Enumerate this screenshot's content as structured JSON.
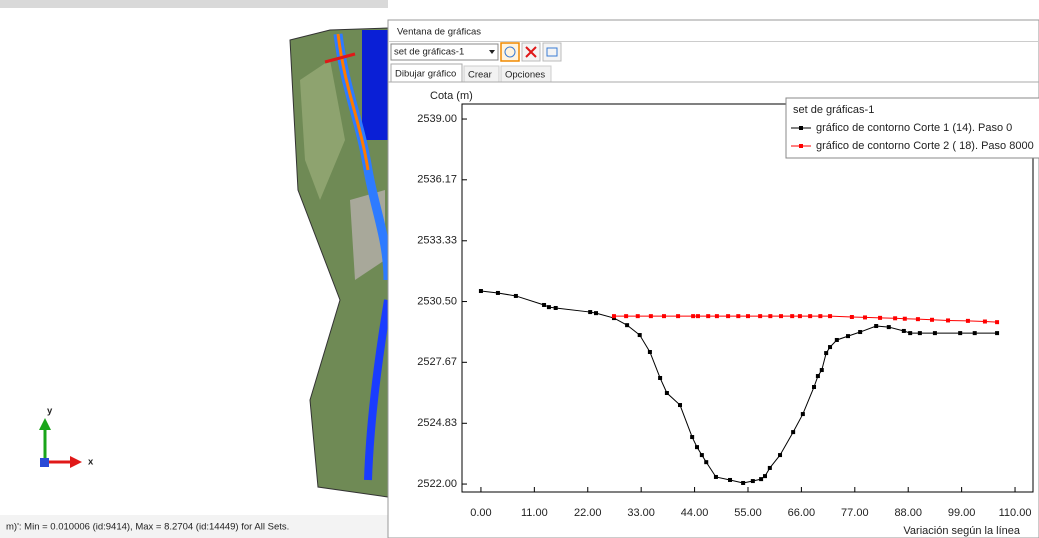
{
  "window_title": "Ventana de gráficas",
  "dropdown": "set de gráficas-1",
  "tabs": [
    "Dibujar gráfico",
    "Crear",
    "Opciones"
  ],
  "status": "m)': Min = 0.010006 (id:9414), Max = 8.2704 (id:14449) for All Sets.",
  "axis_icon": {
    "y": "y",
    "x": "x"
  },
  "chart_data": {
    "type": "line",
    "y_label": "Cota (m)",
    "x_label": "Variación según la línea",
    "legend_title": "set de gráficas-1",
    "legend": "top-right",
    "grid": false,
    "xlim": [
      -3.9,
      113.7
    ],
    "ylim": [
      2521.63,
      2539.7
    ],
    "xticks": [
      {
        "value": 0,
        "label": "0.00"
      },
      {
        "value": 11,
        "label": "11.00"
      },
      {
        "value": 22,
        "label": "22.00"
      },
      {
        "value": 33,
        "label": "33.00"
      },
      {
        "value": 44,
        "label": "44.00"
      },
      {
        "value": 55,
        "label": "55.00"
      },
      {
        "value": 66,
        "label": "66.00"
      },
      {
        "value": 77,
        "label": "77.00"
      },
      {
        "value": 88,
        "label": "88.00"
      },
      {
        "value": 99,
        "label": "99.00"
      },
      {
        "value": 110,
        "label": "110.00"
      }
    ],
    "yticks": [
      {
        "value": 2539,
        "label": "2539.00"
      },
      {
        "value": 2536.17,
        "label": "2536.17"
      },
      {
        "value": 2533.33,
        "label": "2533.33"
      },
      {
        "value": 2530.5,
        "label": "2530.50"
      },
      {
        "value": 2527.67,
        "label": "2527.67"
      },
      {
        "value": 2524.83,
        "label": "2524.83"
      },
      {
        "value": 2522,
        "label": "2522.00"
      }
    ],
    "series": [
      {
        "name": "gráfico de contorno Corte 1 (14). Paso 0",
        "color": "#000000",
        "x": [
          0,
          3.5,
          7.2,
          13.0,
          14.0,
          15.4,
          22.5,
          23.7,
          27.4,
          30.1,
          32.7,
          34.8,
          36.9,
          38.3,
          41.0,
          43.5,
          44.5,
          45.5,
          46.4,
          48.4,
          51.3,
          54.0,
          56.0,
          57.7,
          58.5,
          59.5,
          61.6,
          64.3,
          66.3,
          68.6,
          69.4,
          70.2,
          71.1,
          71.9,
          73.3,
          75.6,
          78.1,
          81.4,
          84.0,
          87.1,
          88.4,
          90.4,
          93.5,
          98.7,
          101.7,
          106.3
        ],
        "values": [
          2530.99,
          2530.9,
          2530.76,
          2530.34,
          2530.24,
          2530.2,
          2530.01,
          2529.96,
          2529.73,
          2529.4,
          2528.94,
          2528.15,
          2526.94,
          2526.24,
          2525.68,
          2524.19,
          2523.72,
          2523.35,
          2523.02,
          2522.33,
          2522.19,
          2522.05,
          2522.14,
          2522.23,
          2522.37,
          2522.75,
          2523.35,
          2524.42,
          2525.26,
          2526.52,
          2527.03,
          2527.31,
          2528.1,
          2528.38,
          2528.71,
          2528.89,
          2529.08,
          2529.36,
          2529.31,
          2529.13,
          2529.03,
          2529.03,
          2529.03,
          2529.03,
          2529.03,
          2529.03
        ]
      },
      {
        "name": "gráfico de contorno Corte 2 ( 18). Paso 8000",
        "color": "#ff0000",
        "x": [
          27.4,
          29.9,
          32.3,
          35.0,
          37.7,
          40.6,
          43.7,
          44.7,
          46.8,
          48.6,
          50.9,
          53.0,
          55.0,
          57.5,
          59.6,
          61.8,
          64.1,
          65.7,
          67.8,
          69.9,
          71.9,
          76.4,
          79.1,
          82.2,
          85.3,
          87.3,
          90.0,
          92.9,
          96.2,
          100.3,
          103.8,
          106.3
        ],
        "values": [
          2529.82,
          2529.82,
          2529.82,
          2529.82,
          2529.82,
          2529.82,
          2529.82,
          2529.82,
          2529.82,
          2529.82,
          2529.82,
          2529.82,
          2529.82,
          2529.82,
          2529.82,
          2529.82,
          2529.82,
          2529.82,
          2529.82,
          2529.82,
          2529.82,
          2529.78,
          2529.76,
          2529.74,
          2529.72,
          2529.7,
          2529.68,
          2529.65,
          2529.62,
          2529.6,
          2529.57,
          2529.54
        ]
      }
    ]
  }
}
